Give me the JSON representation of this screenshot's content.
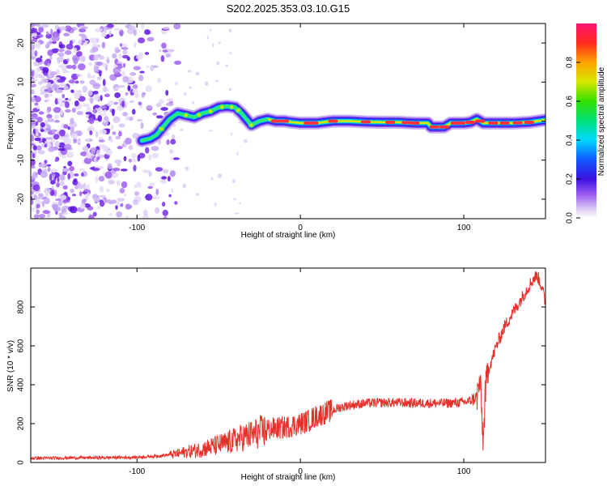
{
  "title": "S202.2025.353.03.10.G15",
  "chart_data": [
    {
      "type": "heatmap",
      "xlabel": "Height of straight line (km)",
      "ylabel": "Frequency (Hz)",
      "xlim": [
        -165,
        150
      ],
      "ylim": [
        -25,
        25
      ],
      "xticks": [
        -100,
        0,
        100
      ],
      "yticks": [
        -20,
        -10,
        0,
        10,
        20
      ],
      "colorbar": {
        "label": "Normalized spectral amplitude",
        "range": [
          0,
          1
        ],
        "ticks": [
          0.0,
          0.2,
          0.4,
          0.6,
          0.8
        ]
      },
      "ridge": {
        "x": [
          -97,
          -92,
          -88,
          -84,
          -80,
          -75,
          -70,
          -65,
          -60,
          -55,
          -50,
          -45,
          -40,
          -36,
          -33,
          -30,
          -25,
          -20,
          -15,
          -10,
          -5,
          0,
          10,
          20,
          30,
          40,
          50,
          60,
          70,
          78,
          80,
          85,
          88,
          92,
          95,
          100,
          104,
          108,
          112,
          115,
          120,
          130,
          140,
          150
        ],
        "freq": [
          -5,
          -4.5,
          -3.5,
          -1.5,
          0.5,
          2,
          1.5,
          1,
          2,
          2.5,
          3.5,
          3.8,
          3.5,
          2,
          0.5,
          -1,
          0,
          0.5,
          0,
          0,
          -0.3,
          -0.5,
          -0.5,
          0,
          0,
          -0.2,
          -0.3,
          -0.3,
          -0.5,
          -0.5,
          -1.5,
          -1.5,
          -1.5,
          -0.5,
          -0.5,
          -0.5,
          -0.3,
          0.5,
          -0.5,
          -0.5,
          -0.5,
          -0.5,
          -0.3,
          0.3
        ]
      }
    },
    {
      "type": "line",
      "xlabel": "Height of straight line (km)",
      "ylabel": "SNR (10 * v/v)",
      "xlim": [
        -165,
        150
      ],
      "ylim": [
        0,
        1000
      ],
      "xticks": [
        -100,
        0,
        100
      ],
      "yticks": [
        0,
        200,
        400,
        600,
        800
      ],
      "series": [
        {
          "color": "#e8302a",
          "x": [
            -165,
            -140,
            -120,
            -100,
            -90,
            -80,
            -75,
            -70,
            -65,
            -60,
            -55,
            -50,
            -45,
            -40,
            -35,
            -30,
            -25,
            -20,
            -15,
            -10,
            -5,
            0,
            5,
            10,
            15,
            20,
            25,
            30,
            40,
            50,
            60,
            70,
            80,
            90,
            100,
            105,
            108,
            110,
            111,
            112,
            113,
            115,
            118,
            120,
            125,
            130,
            135,
            140,
            143,
            145,
            148,
            150
          ],
          "y": [
            22,
            24,
            25,
            27,
            32,
            40,
            45,
            55,
            60,
            70,
            80,
            90,
            100,
            115,
            130,
            140,
            155,
            170,
            175,
            180,
            190,
            200,
            215,
            240,
            255,
            270,
            285,
            295,
            305,
            308,
            308,
            306,
            305,
            305,
            310,
            320,
            340,
            420,
            250,
            90,
            350,
            480,
            550,
            600,
            700,
            770,
            840,
            910,
            950,
            960,
            900,
            810
          ]
        }
      ]
    }
  ],
  "colors": {
    "line": "#e8302a",
    "frame": "#000000"
  }
}
